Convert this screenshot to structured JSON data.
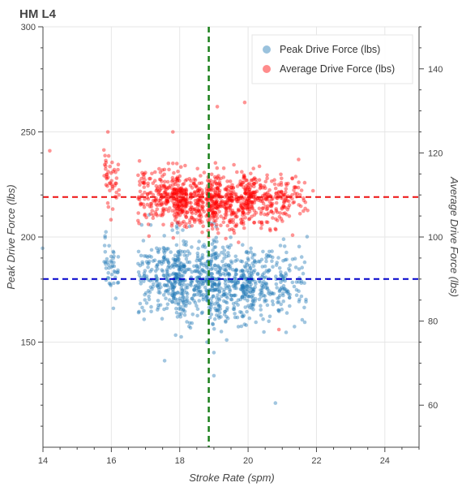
{
  "chart_data": {
    "type": "scatter",
    "title": "HM L4",
    "xlabel": "Stroke Rate (spm)",
    "ylabel": "Peak Drive Force (lbs)",
    "y2label": "Average Drive Force (lbs)",
    "xlim": [
      14,
      25
    ],
    "ylim": [
      100,
      300
    ],
    "y2lim": [
      50,
      150
    ],
    "xticks": [
      "14",
      "16",
      "18",
      "20",
      "22",
      "24"
    ],
    "yticks": [
      "150",
      "200",
      "250",
      "300"
    ],
    "y2ticks": [
      "60",
      "80",
      "100",
      "120",
      "140"
    ],
    "grid": true,
    "legend_position": "top-right",
    "reference_lines": {
      "mean_stroke_rate": 18.85,
      "mean_peak_force": 180,
      "mean_average_force": 109.5
    },
    "series": [
      {
        "name": "Peak Drive Force (lbs)",
        "axis": "left",
        "color": "#1f77b4",
        "clusters": [
          {
            "x": 14.2,
            "y_center": 187,
            "count": 1
          },
          {
            "x": 16.0,
            "y_center": 186,
            "count": 45
          },
          {
            "x": 17.0,
            "y_center": 183,
            "count": 60
          },
          {
            "x": 17.5,
            "y_center": 181,
            "count": 90
          },
          {
            "x": 18.0,
            "y_center": 180,
            "count": 170
          },
          {
            "x": 18.5,
            "y_center": 179,
            "count": 100
          },
          {
            "x": 19.0,
            "y_center": 178,
            "count": 160
          },
          {
            "x": 19.5,
            "y_center": 177,
            "count": 110
          },
          {
            "x": 20.0,
            "y_center": 178,
            "count": 140
          },
          {
            "x": 20.5,
            "y_center": 178,
            "count": 70
          },
          {
            "x": 21.0,
            "y_center": 180,
            "count": 65
          },
          {
            "x": 21.5,
            "y_center": 180,
            "count": 30
          }
        ],
        "outliers": [
          [
            19.0,
            145
          ],
          [
            19.0,
            134
          ],
          [
            20.8,
            121
          ],
          [
            18.8,
            150
          ]
        ]
      },
      {
        "name": "Average Drive Force (lbs)",
        "axis": "right",
        "color": "#ff0000",
        "clusters": [
          {
            "x": 16.0,
            "y_center": 113,
            "count": 45
          },
          {
            "x": 17.0,
            "y_center": 110.5,
            "count": 60
          },
          {
            "x": 17.5,
            "y_center": 110,
            "count": 90
          },
          {
            "x": 18.0,
            "y_center": 109,
            "count": 170
          },
          {
            "x": 18.5,
            "y_center": 108.5,
            "count": 100
          },
          {
            "x": 19.0,
            "y_center": 108.5,
            "count": 160
          },
          {
            "x": 19.5,
            "y_center": 108,
            "count": 110
          },
          {
            "x": 20.0,
            "y_center": 109,
            "count": 140
          },
          {
            "x": 20.5,
            "y_center": 108.5,
            "count": 70
          },
          {
            "x": 21.0,
            "y_center": 108.5,
            "count": 65
          },
          {
            "x": 21.5,
            "y_center": 109.5,
            "count": 30
          }
        ],
        "outliers": [
          [
            14.2,
            120.5
          ],
          [
            15.9,
            125
          ],
          [
            17.8,
            125
          ],
          [
            19.1,
            131
          ],
          [
            19.9,
            132
          ],
          [
            20.9,
            78
          ],
          [
            21.9,
            111
          ]
        ]
      }
    ]
  }
}
